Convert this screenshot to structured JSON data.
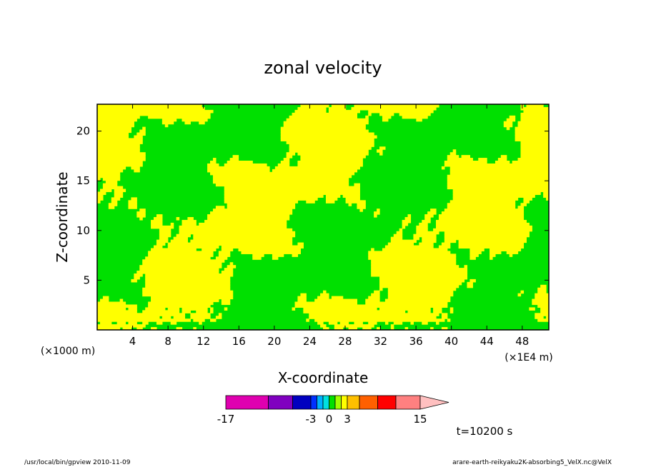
{
  "chart_data": {
    "type": "heatmap",
    "title": "zonal velocity",
    "xlabel": "X-coordinate",
    "ylabel": "Z-coordinate",
    "x_unit": "(×1E4 m)",
    "y_unit": "(×1000 m)",
    "xlim": [
      0,
      51
    ],
    "ylim": [
      0,
      22.7
    ],
    "x_ticks": [
      "4",
      "8",
      "12",
      "16",
      "20",
      "24",
      "28",
      "32",
      "36",
      "40",
      "44",
      "48"
    ],
    "y_ticks": [
      "5",
      "10",
      "15",
      "20"
    ],
    "grid": false,
    "dominant_fill": "#00e000",
    "positive_fill": "#ffff00",
    "colorbar": {
      "levels": [
        -17,
        -10,
        -6,
        -3,
        -2,
        -1,
        0,
        1,
        2,
        3,
        5,
        8,
        11,
        15
      ],
      "colors": [
        "#e000b0",
        "#8000c0",
        "#0000c0",
        "#0030ff",
        "#00b0ff",
        "#00e0e0",
        "#00e000",
        "#a0ff00",
        "#ffff00",
        "#ffc000",
        "#ff6000",
        "#ff0000",
        "#ff8080"
      ],
      "overflow_color": "#ffc0c0",
      "labels": [
        "-17",
        "-3",
        "0",
        "3",
        "15"
      ]
    },
    "time_label": "t=10200 s"
  },
  "footer": {
    "left": "/usr/local/bin/gpview   2010-11-09",
    "right": "arare-earth-reikyaku2K-absorbing5_VelX.nc@VelX"
  }
}
